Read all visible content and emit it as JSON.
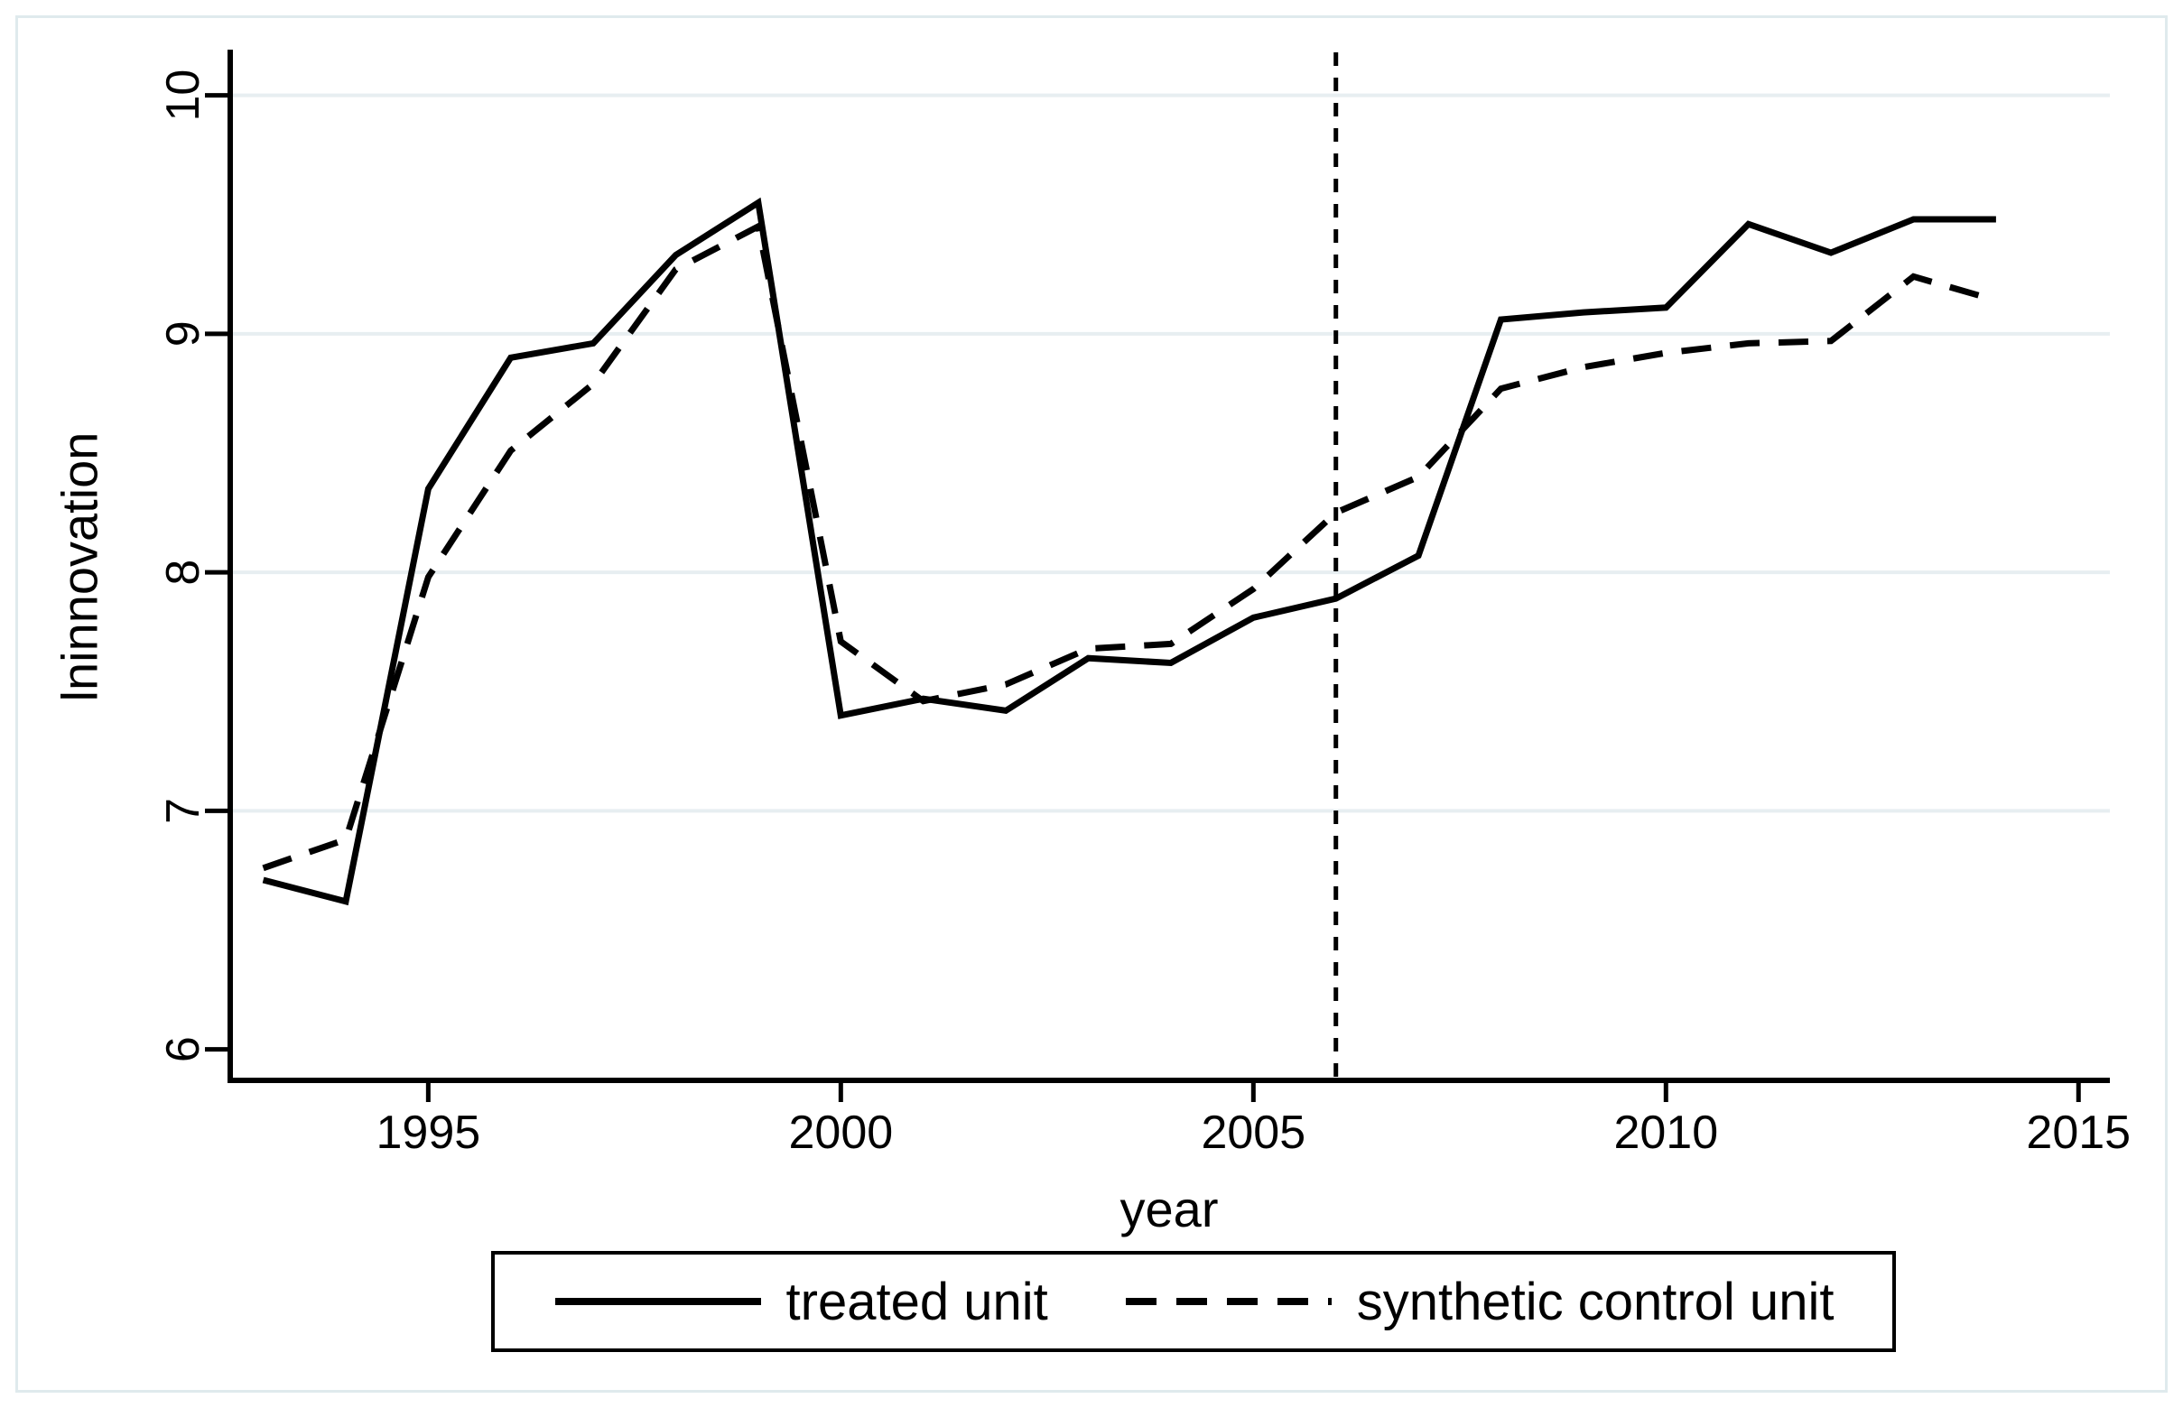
{
  "figure": {
    "background": "#ffffff",
    "frame_color": "#dfeaed",
    "axis_color": "#000000",
    "grid_color": "#e7eef1",
    "series_color": "#000000"
  },
  "chart_data": {
    "type": "line",
    "title": "",
    "xlabel": "year",
    "ylabel": "lninnovation",
    "x": [
      1993,
      1994,
      1995,
      1996,
      1997,
      1998,
      1999,
      2000,
      2001,
      2002,
      2003,
      2004,
      2005,
      2006,
      2007,
      2008,
      2009,
      2010,
      2011,
      2012,
      2013,
      2014
    ],
    "series": [
      {
        "name": "treated unit",
        "style": "solid",
        "values": [
          6.71,
          6.62,
          8.35,
          8.9,
          8.96,
          9.33,
          9.55,
          7.4,
          7.47,
          7.42,
          7.64,
          7.62,
          7.81,
          7.89,
          8.07,
          9.06,
          9.09,
          9.11,
          9.46,
          9.34,
          9.48,
          9.48
        ]
      },
      {
        "name": "synthetic control unit",
        "style": "dashed",
        "values": [
          6.76,
          6.88,
          7.98,
          8.51,
          8.79,
          9.27,
          9.45,
          7.71,
          7.46,
          7.53,
          7.68,
          7.7,
          7.93,
          8.25,
          8.4,
          8.77,
          8.86,
          8.92,
          8.96,
          8.97,
          9.24,
          9.14
        ]
      }
    ],
    "x_ticks": [
      1995,
      2000,
      2005,
      2010,
      2015
    ],
    "y_ticks": [
      6,
      7,
      8,
      9,
      10
    ],
    "grid_y_values": [
      7,
      8,
      9,
      10
    ],
    "xlim": [
      1992.6,
      2015.38
    ],
    "ylim": [
      5.87,
      10.18
    ],
    "vline_x": 2006,
    "grid": "horizontal-only",
    "legend_position": "bottom-center"
  }
}
